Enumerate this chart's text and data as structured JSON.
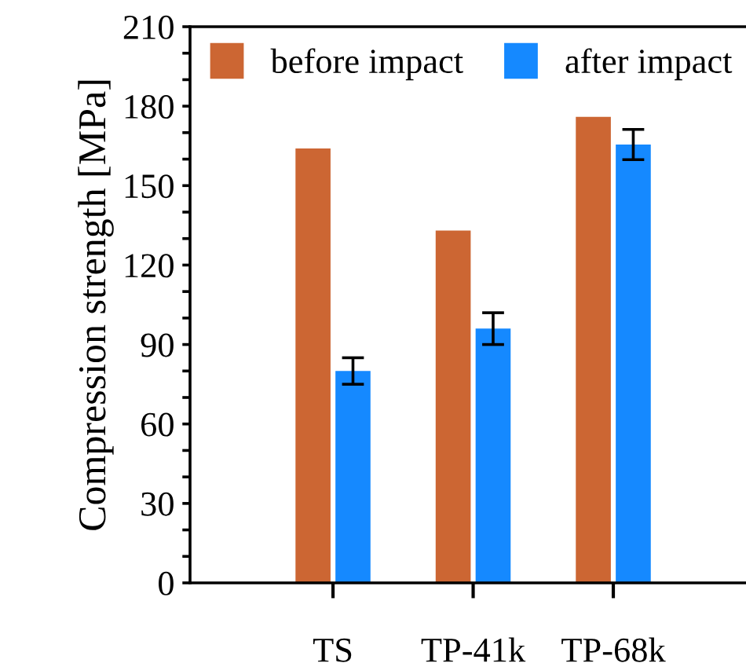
{
  "chart_data": {
    "type": "bar",
    "ylabel": "Compression strength [MPa]",
    "categories": [
      "TS",
      "TP-41k",
      "TP-68k"
    ],
    "series": [
      {
        "name": "before impact",
        "color": "#cc6633",
        "values": [
          164,
          133,
          176
        ]
      },
      {
        "name": "after impact",
        "color": "#1589ff",
        "values": [
          80,
          96,
          165.5
        ],
        "errors": [
          5,
          6,
          5.7
        ]
      }
    ],
    "ylim": [
      0,
      210
    ],
    "yticks": [
      0,
      {
        "value": 10,
        "label": null
      },
      {
        "value": 20,
        "label": null
      },
      30,
      {
        "value": 40,
        "label": null
      },
      {
        "value": 50,
        "label": null
      },
      60,
      {
        "value": 70,
        "label": null
      },
      {
        "value": 80,
        "label": null
      },
      90,
      {
        "value": 100,
        "label": null
      },
      {
        "value": 110,
        "label": null
      },
      120,
      {
        "value": 130,
        "label": null
      },
      {
        "value": 140,
        "label": null
      },
      150,
      {
        "value": 160,
        "label": null
      },
      {
        "value": 170,
        "label": null
      },
      180,
      {
        "value": 190,
        "label": null
      },
      {
        "value": 200,
        "label": null
      },
      210
    ],
    "grid": false,
    "legend": "top"
  }
}
